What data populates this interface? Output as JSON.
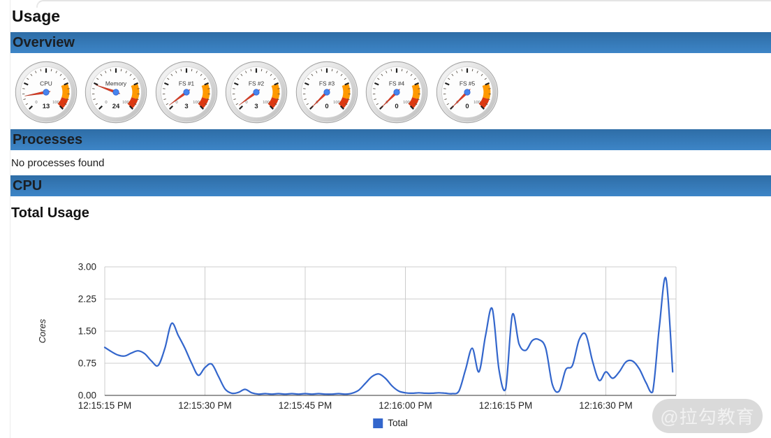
{
  "page": {
    "title": "Usage"
  },
  "sections": {
    "overview": "Overview",
    "processes": "Processes",
    "cpu": "CPU"
  },
  "overview": {
    "gauges": {
      "scale_min": 0,
      "scale_max": 100,
      "yellow_from": 75,
      "yellow_to": 90,
      "red_from": 90,
      "red_to": 100,
      "items": [
        {
          "label": "CPU",
          "value": 13
        },
        {
          "label": "Memory",
          "value": 24
        },
        {
          "label": "FS #1",
          "value": 3
        },
        {
          "label": "FS #2",
          "value": 3
        },
        {
          "label": "FS #3",
          "value": 0
        },
        {
          "label": "FS #4",
          "value": 0
        },
        {
          "label": "FS #5",
          "value": 0
        }
      ]
    }
  },
  "processes": {
    "empty_text": "No processes found"
  },
  "chart_data": {
    "type": "line",
    "title": "Total Usage",
    "ylabel": "Cores",
    "xlabel": "",
    "ylim": [
      0,
      3
    ],
    "ytick_values": [
      0,
      0.75,
      1.5,
      2.25,
      3
    ],
    "ytick_labels": [
      "0.00",
      "0.75",
      "1.50",
      "2.25",
      "3.00"
    ],
    "xtick_labels": [
      "12:15:15 PM",
      "12:15:30 PM",
      "12:15:45 PM",
      "12:16:00 PM",
      "12:16:15 PM",
      "12:16:30 PM"
    ],
    "xtick_seconds": [
      0,
      15,
      30,
      45,
      60,
      75
    ],
    "x_range_seconds": [
      0,
      85.5
    ],
    "sample_interval_seconds": 1,
    "grid": true,
    "legend": {
      "position": "bottom",
      "entries": [
        {
          "label": "Total",
          "color": "#3366cc"
        }
      ]
    },
    "series": [
      {
        "name": "Total",
        "color": "#3366cc",
        "unit": "cores",
        "values": [
          1.12,
          1.02,
          0.94,
          0.92,
          0.99,
          1.04,
          0.97,
          0.8,
          0.7,
          1.1,
          1.68,
          1.4,
          1.1,
          0.75,
          0.47,
          0.65,
          0.73,
          0.45,
          0.15,
          0.05,
          0.07,
          0.14,
          0.06,
          0.03,
          0.04,
          0.03,
          0.04,
          0.03,
          0.04,
          0.03,
          0.04,
          0.03,
          0.04,
          0.03,
          0.03,
          0.04,
          0.03,
          0.05,
          0.12,
          0.28,
          0.44,
          0.5,
          0.4,
          0.22,
          0.1,
          0.06,
          0.05,
          0.06,
          0.05,
          0.05,
          0.06,
          0.05,
          0.04,
          0.1,
          0.6,
          1.1,
          0.55,
          1.4,
          2.02,
          0.6,
          0.15,
          1.88,
          1.2,
          1.05,
          1.28,
          1.3,
          1.1,
          0.25,
          0.1,
          0.6,
          0.7,
          1.3,
          1.42,
          0.8,
          0.35,
          0.55,
          0.4,
          0.55,
          0.78,
          0.8,
          0.62,
          0.3,
          0.08,
          1.6,
          2.73,
          0.55
        ]
      }
    ]
  },
  "watermark": {
    "text": "@拉勾教育"
  },
  "colors": {
    "header_blue_top": "#2e6da6",
    "header_blue_bottom": "#3d85c7",
    "line_blue": "#3366cc",
    "grid": "#cccccc",
    "axis": "#333333",
    "gauge_yellow": "#ff9900",
    "gauge_red": "#dc3912",
    "needle_red": "#dc3d26",
    "hub_blue": "#4684ee"
  }
}
